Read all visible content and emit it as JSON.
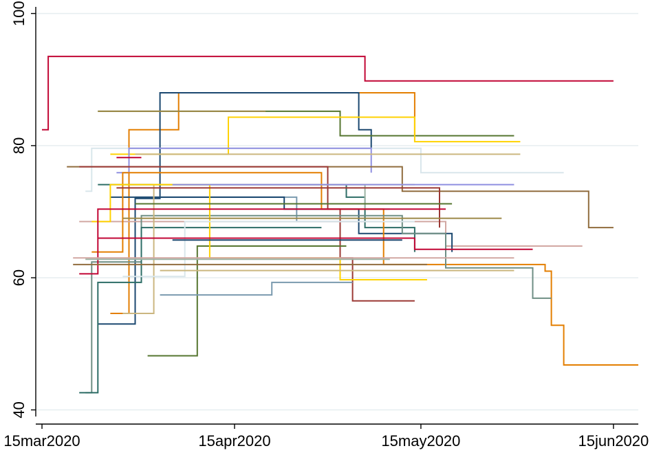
{
  "chart_data": {
    "type": "line",
    "title": "",
    "xlabel": "",
    "ylabel": "",
    "xlim": [
      "2020-03-14",
      "2020-06-19"
    ],
    "ylim": [
      39,
      101
    ],
    "grid": true,
    "legend": "none",
    "x_ticks": [
      "2020-03-15",
      "2020-04-15",
      "2020-05-15",
      "2020-06-15"
    ],
    "x_tick_labels": [
      "15mar2020",
      "15apr2020",
      "15may2020",
      "15jun2020"
    ],
    "y_ticks": [
      40,
      60,
      80,
      100
    ],
    "y_tick_labels": [
      "40",
      "60",
      "80",
      "100"
    ],
    "colors": {
      "grid": "#e6eef0",
      "axis": "#000000",
      "background": "#ffffff"
    },
    "series": [
      {
        "color": "#c10534",
        "values": [
          [
            "2020-03-15",
            82.4
          ],
          [
            "2020-03-16",
            93.5
          ],
          [
            "2020-05-05",
            93.5
          ],
          [
            "2020-05-06",
            89.8
          ],
          [
            "2020-06-15",
            89.8
          ]
        ]
      },
      {
        "color": "#e37e00",
        "values": [
          [
            "2020-03-26",
            54.6
          ],
          [
            "2020-03-29",
            82.4
          ],
          [
            "2020-04-02",
            82.4
          ],
          [
            "2020-04-06",
            88.0
          ],
          [
            "2020-05-13",
            88.0
          ],
          [
            "2020-05-14",
            81.5
          ]
        ]
      },
      {
        "color": "#1a476f",
        "values": [
          [
            "2020-03-24",
            53.0
          ],
          [
            "2020-03-30",
            72.0
          ],
          [
            "2020-04-03",
            88.0
          ],
          [
            "2020-05-04",
            88.0
          ],
          [
            "2020-05-05",
            82.4
          ],
          [
            "2020-05-06",
            82.4
          ],
          [
            "2020-05-07",
            79.6
          ]
        ]
      },
      {
        "color": "#55752f",
        "values": [
          [
            "2020-03-24",
            85.2
          ],
          [
            "2020-05-01",
            85.2
          ],
          [
            "2020-05-02",
            81.5
          ],
          [
            "2020-05-30",
            81.5
          ]
        ]
      },
      {
        "color": "#ffd200",
        "values": [
          [
            "2020-03-26",
            78.7
          ],
          [
            "2020-04-11",
            78.7
          ],
          [
            "2020-04-14",
            84.3
          ],
          [
            "2020-05-13",
            84.3
          ],
          [
            "2020-05-14",
            80.6
          ],
          [
            "2020-05-31",
            80.6
          ]
        ]
      },
      {
        "color": "#d9e6eb",
        "values": [
          [
            "2020-03-22",
            73.1
          ],
          [
            "2020-03-23",
            79.6
          ],
          [
            "2020-05-14",
            79.6
          ],
          [
            "2020-05-15",
            75.9
          ],
          [
            "2020-06-07",
            75.9
          ]
        ]
      },
      {
        "color": "#8f8fe0",
        "values": [
          [
            "2020-03-27",
            75.9
          ],
          [
            "2020-03-29",
            79.6
          ],
          [
            "2020-05-06",
            79.6
          ],
          [
            "2020-05-07",
            75.9
          ]
        ]
      },
      {
        "color": "#cbb67f",
        "values": [
          [
            "2020-03-30",
            78.7
          ],
          [
            "2020-05-31",
            78.7
          ]
        ]
      },
      {
        "color": "#906c3d",
        "values": [
          [
            "2020-03-19",
            76.8
          ],
          [
            "2020-05-11",
            76.8
          ],
          [
            "2020-05-12",
            73.1
          ],
          [
            "2020-06-10",
            73.1
          ],
          [
            "2020-06-11",
            67.6
          ],
          [
            "2020-06-15",
            67.6
          ]
        ]
      },
      {
        "color": "#9c8847",
        "values": [
          [
            "2020-03-24",
            85.2
          ],
          [
            "2020-04-20",
            85.2
          ]
        ]
      },
      {
        "color": "#c10534",
        "values": [
          [
            "2020-03-27",
            78.2
          ],
          [
            "2020-03-31",
            78.2
          ]
        ]
      },
      {
        "color": "#2d6d66",
        "values": [
          [
            "2020-03-24",
            74.1
          ],
          [
            "2020-05-02",
            74.1
          ],
          [
            "2020-05-03",
            72.2
          ],
          [
            "2020-05-06",
            67.6
          ],
          [
            "2020-05-13",
            67.6
          ],
          [
            "2020-05-14",
            63.9
          ]
        ]
      },
      {
        "color": "#9b3834",
        "values": [
          [
            "2020-03-21",
            76.8
          ],
          [
            "2020-04-29",
            76.8
          ],
          [
            "2020-04-30",
            70.4
          ],
          [
            "2020-05-01",
            70.4
          ],
          [
            "2020-05-02",
            63.0
          ],
          [
            "2020-05-03",
            63.0
          ],
          [
            "2020-05-04",
            56.5
          ],
          [
            "2020-05-14",
            56.5
          ]
        ]
      },
      {
        "color": "#7a9aaf",
        "values": [
          [
            "2020-03-30",
            72.2
          ],
          [
            "2020-04-24",
            72.2
          ],
          [
            "2020-04-25",
            68.5
          ],
          [
            "2020-05-06",
            68.5
          ]
        ]
      },
      {
        "color": "#d2a7a2",
        "values": [
          [
            "2020-03-21",
            68.5
          ],
          [
            "2020-05-18",
            68.5
          ],
          [
            "2020-05-19",
            64.8
          ],
          [
            "2020-06-10",
            64.8
          ]
        ]
      },
      {
        "color": "#9db3a4",
        "values": [
          [
            "2020-04-03",
            74.1
          ],
          [
            "2020-05-05",
            74.1
          ],
          [
            "2020-05-06",
            70.4
          ],
          [
            "2020-05-10",
            70.4
          ]
        ]
      },
      {
        "color": "#1a476f",
        "values": [
          [
            "2020-03-26",
            72.2
          ],
          [
            "2020-04-22",
            72.2
          ],
          [
            "2020-04-23",
            70.4
          ],
          [
            "2020-05-04",
            70.4
          ],
          [
            "2020-05-05",
            66.7
          ],
          [
            "2020-05-19",
            66.7
          ],
          [
            "2020-05-20",
            63.9
          ]
        ]
      },
      {
        "color": "#e37e00",
        "values": [
          [
            "2020-03-23",
            63.9
          ],
          [
            "2020-03-26",
            63.9
          ],
          [
            "2020-03-28",
            75.9
          ],
          [
            "2020-04-28",
            75.9
          ],
          [
            "2020-04-29",
            70.4
          ],
          [
            "2020-05-08",
            70.4
          ],
          [
            "2020-05-09",
            62.0
          ],
          [
            "2020-06-03",
            62.0
          ],
          [
            "2020-06-04",
            61.0
          ],
          [
            "2020-06-05",
            52.8
          ],
          [
            "2020-06-06",
            52.8
          ],
          [
            "2020-06-07",
            46.8
          ],
          [
            "2020-06-19",
            46.8
          ]
        ]
      },
      {
        "color": "#6e8e84",
        "values": [
          [
            "2020-03-22",
            42.6
          ],
          [
            "2020-03-23",
            62.4
          ],
          [
            "2020-03-30",
            62.4
          ],
          [
            "2020-03-31",
            69.4
          ],
          [
            "2020-05-11",
            69.4
          ],
          [
            "2020-05-12",
            66.7
          ],
          [
            "2020-05-18",
            66.7
          ],
          [
            "2020-05-19",
            61.5
          ],
          [
            "2020-06-01",
            61.5
          ],
          [
            "2020-06-02",
            56.9
          ],
          [
            "2020-06-05",
            56.9
          ]
        ]
      },
      {
        "color": "#2d6d66",
        "values": [
          [
            "2020-03-21",
            42.6
          ],
          [
            "2020-03-23",
            42.6
          ],
          [
            "2020-03-24",
            59.3
          ],
          [
            "2020-03-29",
            59.3
          ],
          [
            "2020-03-31",
            67.6
          ],
          [
            "2020-04-29",
            67.6
          ]
        ]
      },
      {
        "color": "#55752f",
        "values": [
          [
            "2020-04-01",
            48.2
          ],
          [
            "2020-04-06",
            48.2
          ],
          [
            "2020-04-09",
            64.8
          ],
          [
            "2020-05-03",
            64.8
          ]
        ]
      },
      {
        "color": "#7a9aaf",
        "values": [
          [
            "2020-04-03",
            57.4
          ],
          [
            "2020-04-19",
            57.4
          ],
          [
            "2020-04-21",
            59.3
          ],
          [
            "2020-05-04",
            59.3
          ]
        ]
      },
      {
        "color": "#cbb67f",
        "values": [
          [
            "2020-03-28",
            54.6
          ],
          [
            "2020-03-30",
            54.6
          ],
          [
            "2020-04-02",
            74.1
          ],
          [
            "2020-05-14",
            74.1
          ]
        ]
      },
      {
        "color": "#ffd200",
        "values": [
          [
            "2020-03-23",
            68.5
          ],
          [
            "2020-03-25",
            68.5
          ],
          [
            "2020-03-26",
            74.1
          ],
          [
            "2020-04-10",
            74.1
          ],
          [
            "2020-04-11",
            63.0
          ],
          [
            "2020-05-01",
            63.0
          ],
          [
            "2020-05-02",
            59.7
          ],
          [
            "2020-05-16",
            59.7
          ]
        ]
      },
      {
        "color": "#9b3834",
        "values": [
          [
            "2020-03-27",
            73.6
          ],
          [
            "2020-05-17",
            73.6
          ],
          [
            "2020-05-18",
            67.6
          ]
        ]
      },
      {
        "color": "#c10534",
        "values": [
          [
            "2020-03-21",
            60.6
          ],
          [
            "2020-03-23",
            60.6
          ],
          [
            "2020-03-24",
            70.4
          ],
          [
            "2020-05-19",
            70.4
          ]
        ]
      },
      {
        "color": "#d9e6eb",
        "values": [
          [
            "2020-03-28",
            60.2
          ],
          [
            "2020-04-06",
            60.2
          ],
          [
            "2020-04-07",
            68.5
          ],
          [
            "2020-05-14",
            68.5
          ]
        ]
      },
      {
        "color": "#d2a7a2",
        "values": [
          [
            "2020-03-20",
            63.0
          ],
          [
            "2020-05-30",
            63.0
          ]
        ]
      },
      {
        "color": "#906c3d",
        "values": [
          [
            "2020-03-20",
            62.0
          ],
          [
            "2020-05-16",
            62.0
          ]
        ]
      },
      {
        "color": "#9db3a4",
        "values": [
          [
            "2020-03-22",
            62.8
          ],
          [
            "2020-05-10",
            62.8
          ]
        ]
      },
      {
        "color": "#cbb67f",
        "values": [
          [
            "2020-04-03",
            61.1
          ],
          [
            "2020-05-30",
            61.1
          ]
        ]
      },
      {
        "color": "#8f8fe0",
        "values": [
          [
            "2020-04-05",
            74.1
          ],
          [
            "2020-05-30",
            74.1
          ]
        ]
      },
      {
        "color": "#c10534",
        "values": [
          [
            "2020-03-24",
            66.0
          ],
          [
            "2020-05-13",
            66.0
          ],
          [
            "2020-05-14",
            64.3
          ],
          [
            "2020-06-02",
            64.3
          ]
        ]
      },
      {
        "color": "#9c8847",
        "values": [
          [
            "2020-03-28",
            69.0
          ],
          [
            "2020-05-28",
            69.0
          ]
        ]
      },
      {
        "color": "#1a476f",
        "values": [
          [
            "2020-04-05",
            65.7
          ],
          [
            "2020-05-12",
            65.7
          ]
        ]
      },
      {
        "color": "#55752f",
        "values": [
          [
            "2020-03-30",
            71.2
          ],
          [
            "2020-05-20",
            71.2
          ]
        ]
      }
    ]
  }
}
